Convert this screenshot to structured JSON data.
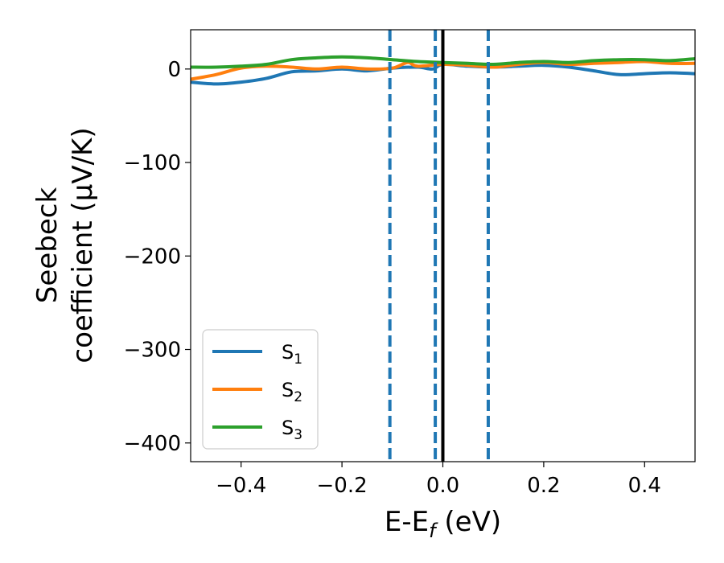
{
  "chart_data": {
    "type": "line",
    "xlabel": "E-E",
    "xlabel_sub": "f",
    "xlabel_unit": " (eV)",
    "ylabel_line1": "Seebeck",
    "ylabel_line2": "coefficient  (μV/K)",
    "xlim": [
      -0.5,
      0.5
    ],
    "ylim": [
      -420,
      42
    ],
    "xticks": [
      -0.4,
      -0.2,
      0.0,
      0.2,
      0.4
    ],
    "xtick_labels": [
      "−0.4",
      "−0.2",
      "0.0",
      "0.2",
      "0.4"
    ],
    "yticks": [
      0,
      -100,
      -200,
      -300,
      -400
    ],
    "ytick_labels": [
      "0",
      "−100",
      "−200",
      "−300",
      "−400"
    ],
    "legend_position": "lower-left",
    "vlines": [
      {
        "x": -0.105,
        "style": "dashed",
        "color": "#1f77b4"
      },
      {
        "x": -0.015,
        "style": "dashed",
        "color": "#1f77b4"
      },
      {
        "x": 0.0,
        "style": "solid",
        "color": "#000000"
      },
      {
        "x": 0.09,
        "style": "dashed",
        "color": "#1f77b4"
      }
    ],
    "series": [
      {
        "name": "S",
        "sub": "1",
        "color": "#1f77b4",
        "x": [
          -0.5,
          -0.45,
          -0.4,
          -0.35,
          -0.3,
          -0.25,
          -0.2,
          -0.15,
          -0.1,
          -0.05,
          -0.02,
          0.0,
          0.05,
          0.1,
          0.15,
          0.2,
          0.25,
          0.3,
          0.35,
          0.4,
          0.45,
          0.5
        ],
        "y": [
          -14,
          -16,
          -14,
          -10,
          -3,
          -2,
          0,
          -2,
          1,
          2,
          0,
          5,
          3,
          2,
          3,
          4,
          2,
          -2,
          -6,
          -5,
          -4,
          -5
        ]
      },
      {
        "name": "S",
        "sub": "2",
        "color": "#ff7f0e",
        "x": [
          -0.5,
          -0.45,
          -0.4,
          -0.35,
          -0.3,
          -0.25,
          -0.2,
          -0.15,
          -0.1,
          -0.07,
          -0.05,
          0.0,
          0.05,
          0.1,
          0.15,
          0.2,
          0.25,
          0.3,
          0.35,
          0.4,
          0.45,
          0.5
        ],
        "y": [
          -11,
          -6,
          1,
          3,
          2,
          0,
          2,
          0,
          1,
          7,
          3,
          5,
          4,
          2,
          5,
          7,
          5,
          6,
          7,
          8,
          6,
          6
        ]
      },
      {
        "name": "S",
        "sub": "3",
        "color": "#2ca02c",
        "x": [
          -0.5,
          -0.45,
          -0.4,
          -0.35,
          -0.3,
          -0.25,
          -0.2,
          -0.15,
          -0.1,
          -0.05,
          0.0,
          0.05,
          0.1,
          0.15,
          0.2,
          0.25,
          0.3,
          0.35,
          0.4,
          0.45,
          0.5
        ],
        "y": [
          2,
          2,
          3,
          5,
          10,
          12,
          13,
          12,
          10,
          8,
          7,
          6,
          5,
          7,
          8,
          7,
          9,
          10,
          10,
          9,
          11
        ]
      }
    ]
  }
}
